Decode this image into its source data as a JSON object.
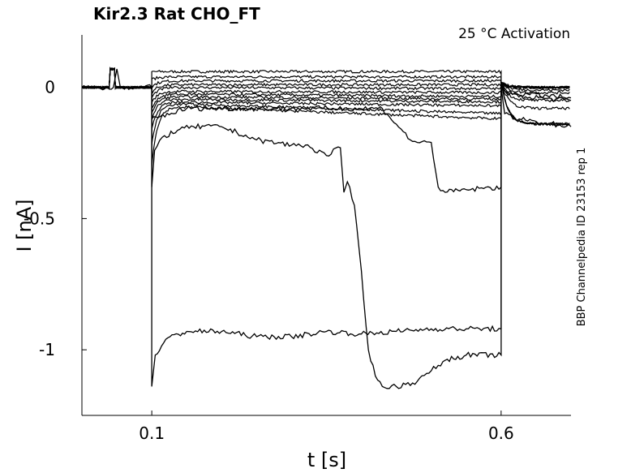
{
  "chart_data": {
    "type": "line",
    "title": "Kir2.3  Rat  CHO_FT",
    "subtitle": "25 °C  Activation",
    "side_label": "BBP Channelpedia ID 23153 rep 1",
    "xlabel": "t [s]",
    "ylabel": "I [nA]",
    "xlim": [
      0.0,
      0.7
    ],
    "ylim": [
      -1.25,
      0.2
    ],
    "xticks": [
      0.1,
      0.6
    ],
    "xtick_labels": [
      "0.1",
      "0.6"
    ],
    "yticks": [
      0,
      -0.5,
      -1
    ],
    "ytick_labels": [
      "0",
      "-0.5",
      "-1"
    ],
    "grid": false,
    "line_color": "#000000",
    "pulse_window": [
      0.1,
      0.6
    ],
    "series": [
      {
        "baseline": 0.0,
        "pre_pulse": 0.06,
        "end": 0.06,
        "tail": 0.0,
        "peak": 0.06
      },
      {
        "baseline": 0.0,
        "pre_pulse": 0.04,
        "end": 0.04,
        "tail": 0.0,
        "peak": 0.03
      },
      {
        "baseline": 0.0,
        "pre_pulse": 0.025,
        "end": 0.025,
        "tail": 0.0,
        "peak": 0.0
      },
      {
        "baseline": 0.0,
        "pre_pulse": 0.01,
        "end": 0.01,
        "tail": 0.0,
        "peak": -0.02
      },
      {
        "baseline": 0.0,
        "pre_pulse": 0.0,
        "end": -0.005,
        "tail": 0.0,
        "peak": -0.04
      },
      {
        "baseline": 0.0,
        "pre_pulse": -0.015,
        "end": -0.02,
        "tail": -0.01,
        "peak": -0.06
      },
      {
        "baseline": 0.0,
        "pre_pulse": -0.025,
        "end": -0.035,
        "tail": -0.02,
        "peak": -0.08
      },
      {
        "baseline": 0.0,
        "pre_pulse": -0.035,
        "end": -0.045,
        "tail": -0.05,
        "peak": -0.1
      },
      {
        "baseline": 0.0,
        "pre_pulse": -0.045,
        "end": -0.055,
        "tail": -0.08,
        "peak": -0.12
      },
      {
        "baseline": 0.0,
        "pre_pulse": -0.055,
        "end": -0.07,
        "tail": -0.14,
        "peak": -0.16
      },
      {
        "baseline": 0.0,
        "pre_pulse": -0.06,
        "end": -0.1,
        "tail": -0.14,
        "peak": -0.22
      },
      {
        "baseline": 0.0,
        "pre_pulse": -0.07,
        "end": -0.12,
        "tail": -0.14,
        "peak": -0.3
      }
    ],
    "special_series": [
      {
        "points": [
          [
            0.0,
            0.0
          ],
          [
            0.045,
            0.0
          ],
          [
            0.05,
            0.07
          ],
          [
            0.055,
            0.0
          ],
          [
            0.1,
            0.0
          ],
          [
            0.1,
            -0.38
          ],
          [
            0.104,
            -0.24
          ],
          [
            0.115,
            -0.19
          ],
          [
            0.14,
            -0.16
          ],
          [
            0.16,
            -0.15
          ],
          [
            0.2,
            -0.15
          ],
          [
            0.25,
            -0.2
          ],
          [
            0.3,
            -0.22
          ],
          [
            0.32,
            -0.22
          ],
          [
            0.35,
            -0.26
          ],
          [
            0.37,
            -0.23
          ],
          [
            0.375,
            -0.4
          ],
          [
            0.38,
            -0.36
          ],
          [
            0.39,
            -0.45
          ],
          [
            0.4,
            -0.7
          ],
          [
            0.41,
            -1.0
          ],
          [
            0.42,
            -1.1
          ],
          [
            0.43,
            -1.14
          ],
          [
            0.45,
            -1.14
          ],
          [
            0.48,
            -1.12
          ],
          [
            0.5,
            -1.08
          ],
          [
            0.52,
            -1.04
          ],
          [
            0.55,
            -1.02
          ],
          [
            0.6,
            -1.02
          ],
          [
            0.6,
            0.0
          ],
          [
            0.605,
            -0.1
          ],
          [
            0.62,
            -0.12
          ],
          [
            0.65,
            -0.13
          ],
          [
            0.7,
            -0.15
          ]
        ]
      },
      {
        "points": [
          [
            0.1,
            0.0
          ],
          [
            0.1,
            -1.14
          ],
          [
            0.105,
            -1.02
          ],
          [
            0.12,
            -0.96
          ],
          [
            0.15,
            -0.93
          ],
          [
            0.2,
            -0.93
          ],
          [
            0.25,
            -0.95
          ],
          [
            0.3,
            -0.95
          ],
          [
            0.35,
            -0.93
          ],
          [
            0.4,
            -0.94
          ],
          [
            0.45,
            -0.93
          ],
          [
            0.5,
            -0.92
          ],
          [
            0.55,
            -0.92
          ],
          [
            0.6,
            -0.92
          ],
          [
            0.6,
            0.0
          ],
          [
            0.61,
            -0.03
          ],
          [
            0.7,
            -0.05
          ]
        ]
      },
      {
        "points": [
          [
            0.1,
            0.0
          ],
          [
            0.1,
            -0.12
          ],
          [
            0.15,
            -0.08
          ],
          [
            0.3,
            -0.08
          ],
          [
            0.43,
            -0.08
          ],
          [
            0.45,
            -0.14
          ],
          [
            0.47,
            -0.2
          ],
          [
            0.48,
            -0.21
          ],
          [
            0.5,
            -0.21
          ],
          [
            0.51,
            -0.38
          ],
          [
            0.52,
            -0.4
          ],
          [
            0.55,
            -0.39
          ],
          [
            0.6,
            -0.38
          ],
          [
            0.6,
            0.0
          ],
          [
            0.61,
            -0.02
          ],
          [
            0.7,
            -0.04
          ]
        ]
      }
    ]
  }
}
